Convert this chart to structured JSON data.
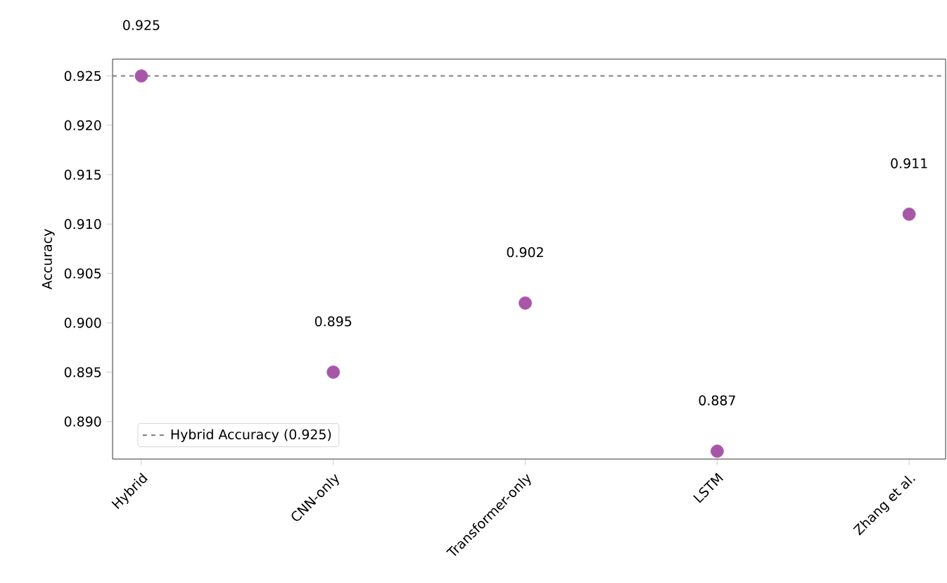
{
  "chart_data": {
    "type": "scatter",
    "ylabel": "Accuracy",
    "categories": [
      "Hybrid",
      "CNN-only",
      "Transformer-only",
      "LSTM",
      "Zhang et al."
    ],
    "values": [
      0.925,
      0.895,
      0.902,
      0.887,
      0.911
    ],
    "value_labels": [
      "0.925",
      "0.895",
      "0.902",
      "0.887",
      "0.911"
    ],
    "color": "#a857a8",
    "marker": "circle",
    "ylim": [
      0.8862,
      0.9267
    ],
    "yticks": [
      {
        "value": 0.89,
        "label": "0.890"
      },
      {
        "value": 0.895,
        "label": "0.895"
      },
      {
        "value": 0.9,
        "label": "0.900"
      },
      {
        "value": 0.905,
        "label": "0.905"
      },
      {
        "value": 0.91,
        "label": "0.910"
      },
      {
        "value": 0.915,
        "label": "0.915"
      },
      {
        "value": 0.92,
        "label": "0.920"
      },
      {
        "value": 0.925,
        "label": "0.925"
      }
    ],
    "ref_lines": [
      {
        "axis": "y",
        "value": 0.925,
        "label": "Hybrid Accuracy (0.925)",
        "color": "#808080",
        "line_style": "dashed"
      }
    ],
    "legend": "bottom left"
  }
}
